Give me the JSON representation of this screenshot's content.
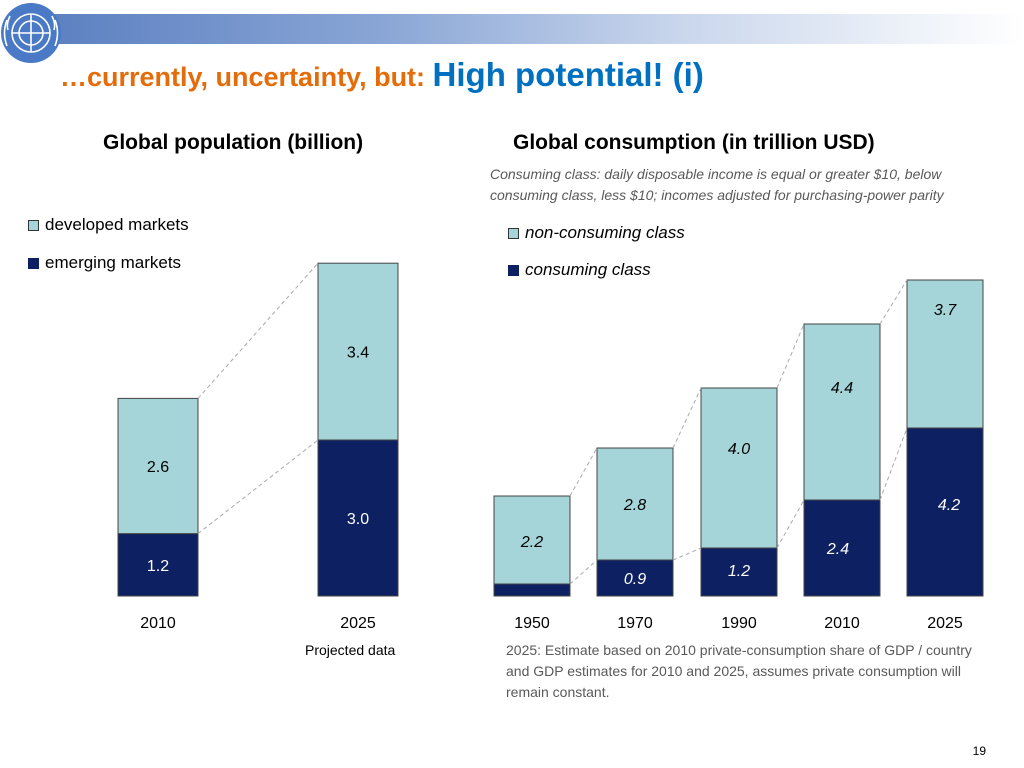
{
  "header": {
    "title_part1": "…currently, uncertainty, but: ",
    "title_part2": "High potential! (i)",
    "logo_icon": "un-emblem-icon"
  },
  "colors": {
    "light": "#a5d5d8",
    "dark": "#0d2061",
    "title_orange": "#e46c0a",
    "title_blue": "#0070c0"
  },
  "chart_data": [
    {
      "type": "bar",
      "stacked": true,
      "title": "Global population (billion)",
      "categories": [
        "2010",
        "2025"
      ],
      "series": [
        {
          "name": "emerging markets",
          "values": [
            1.2,
            3.0
          ]
        },
        {
          "name": "developed markets",
          "values": [
            2.6,
            3.4
          ]
        }
      ],
      "ylim": [
        0,
        7
      ],
      "legend": [
        "developed markets",
        "emerging markets"
      ],
      "subnote": "Projected data"
    },
    {
      "type": "bar",
      "stacked": true,
      "title": "Global consumption (in trillion USD)",
      "note": "Consuming class: daily disposable income is equal or greater $10, below consuming class, less $10; incomes adjusted for purchasing-power parity",
      "categories": [
        "1950",
        "1970",
        "1990",
        "2010",
        "2025"
      ],
      "series": [
        {
          "name": "consuming class",
          "values": [
            0.3,
            0.9,
            1.2,
            2.4,
            4.2
          ],
          "labels": [
            "",
            "0.9",
            "1.2",
            "2.4",
            "4.2"
          ]
        },
        {
          "name": "non-consuming class",
          "values": [
            2.2,
            2.8,
            4.0,
            4.4,
            3.7
          ],
          "labels": [
            "2.2",
            "2.8",
            "4.0",
            "4.4",
            "3.7"
          ]
        }
      ],
      "ylim": [
        0,
        8.6
      ],
      "legend": [
        "non-consuming class",
        "consuming class"
      ],
      "footnote": "2025: Estimate based on 2010 private-consumption share of GDP / country and GDP estimates for 2010 and 2025, assumes private consumption will remain constant."
    }
  ],
  "page_number": "19"
}
